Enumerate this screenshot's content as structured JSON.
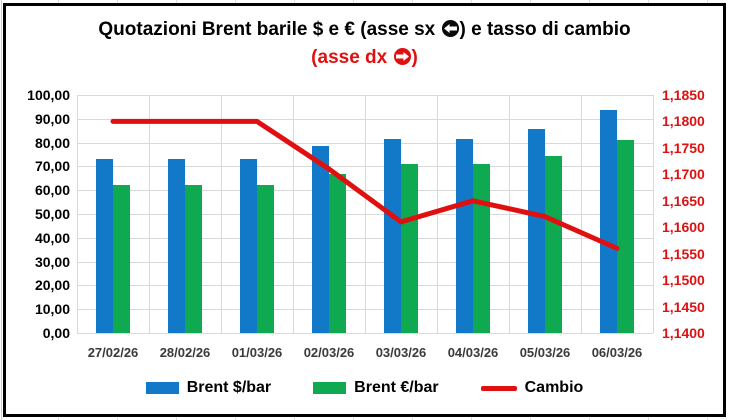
{
  "title": {
    "line1_prefix": "Quotazioni Brent barile $ e € (asse sx ",
    "line1_suffix": ") e tasso di cambio",
    "line2_prefix": "(asse dx ",
    "line2_suffix": ")"
  },
  "colors": {
    "brent_usd": "#1278c8",
    "brent_eur": "#0fa951",
    "cambio": "#e01010",
    "subtitle_red": "#e01010",
    "right_axis_text": "#dd1111",
    "left_axis_text": "#000000",
    "x_axis_text": "#3a3a3a",
    "gridline": "#d9d9d9",
    "frame_border": "#000000"
  },
  "chart_data": {
    "type": "bar",
    "combo": "clustered bars (left axis) + line (right axis)",
    "title": "Quotazioni Brent barile $ e € (asse sx ←) e tasso di cambio (asse dx →)",
    "categories": [
      "27/02/26",
      "28/02/26",
      "01/03/26",
      "02/03/26",
      "03/03/26",
      "04/03/26",
      "05/03/26",
      "06/03/26"
    ],
    "series": [
      {
        "id": "brent-usd",
        "name": "Brent $/bar",
        "type": "bar",
        "axis": "left",
        "color": "#1278c8",
        "values": [
          73.3,
          73.3,
          73.3,
          78.5,
          81.7,
          81.7,
          85.8,
          93.5
        ]
      },
      {
        "id": "brent-eur",
        "name": "Brent €/bar",
        "type": "bar",
        "axis": "left",
        "color": "#0fa951",
        "values": [
          62.0,
          62.0,
          62.0,
          67.0,
          70.8,
          70.8,
          74.2,
          81.0
        ]
      },
      {
        "id": "cambio",
        "name": "Cambio",
        "type": "line",
        "axis": "right",
        "color": "#e01010",
        "values": [
          1.18,
          1.18,
          1.18,
          1.171,
          1.161,
          1.165,
          1.162,
          1.156
        ]
      }
    ],
    "left_axis": {
      "min": 0,
      "max": 100,
      "step": 10,
      "tick_labels": [
        "100,00",
        "90,00",
        "80,00",
        "70,00",
        "60,00",
        "50,00",
        "40,00",
        "30,00",
        "20,00",
        "10,00",
        "0,00"
      ]
    },
    "right_axis": {
      "min": 1.14,
      "max": 1.185,
      "step": 0.005,
      "tick_labels": [
        "1,1850",
        "1,1800",
        "1,1750",
        "1,1700",
        "1,1650",
        "1,1600",
        "1,1550",
        "1,1500",
        "1,1450",
        "1,1400"
      ]
    },
    "legend": {
      "position": "bottom",
      "entries": [
        "Brent $/bar",
        "Brent €/bar",
        "Cambio"
      ]
    },
    "grid": true
  }
}
